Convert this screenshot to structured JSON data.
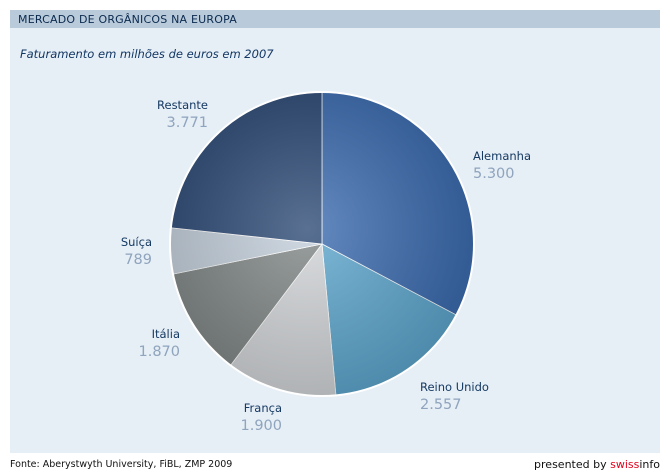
{
  "header": {
    "title": "MERCADO DE ORGÂNICOS NA EUROPA"
  },
  "chart_data": {
    "type": "pie",
    "subtitle": "Faturamento em milhões de euros em 2007",
    "slices": [
      {
        "label": "Alemanha",
        "value": 5300,
        "display": "5.300",
        "color": "#3a6bb0"
      },
      {
        "label": "Reino Unido",
        "value": 2557,
        "display": "2.557",
        "color": "#5da7cf"
      },
      {
        "label": "França",
        "value": 1900,
        "display": "1.900",
        "color": "#d3d6d9"
      },
      {
        "label": "Itália",
        "value": 1870,
        "display": "1.870",
        "color": "#7f8685"
      },
      {
        "label": "Suíça",
        "value": 789,
        "display": "789",
        "color": "#c3cfdb"
      },
      {
        "label": "Restante",
        "value": 3771,
        "display": "3.771",
        "color": "#2a4874"
      }
    ]
  },
  "footer": {
    "source": "Fonte: Aberystwyth University, FiBL, ZMP 2009",
    "presented_by": "presented by ",
    "brand_a": "swiss",
    "brand_b": "info"
  }
}
